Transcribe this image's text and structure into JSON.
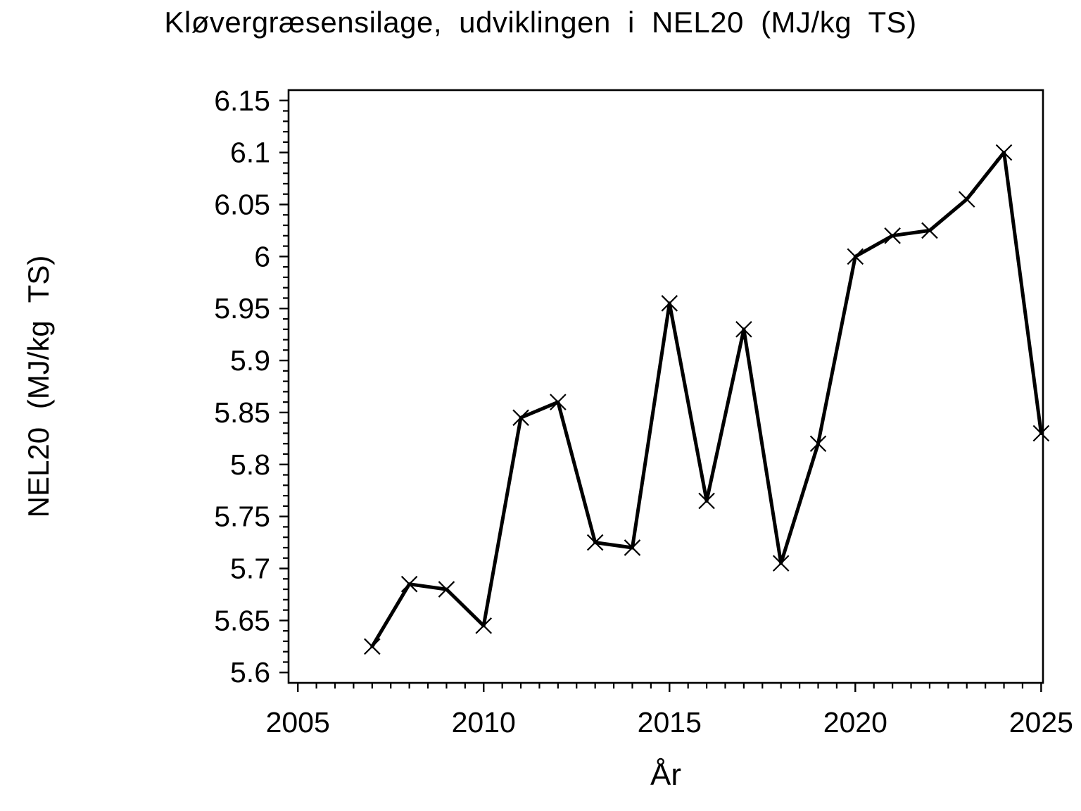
{
  "chart_data": {
    "type": "line",
    "title": "Kløvergræsensilage, udviklingen i NEL20 (MJ/kg TS)",
    "xlabel": "År",
    "ylabel": "NEL20 (MJ/kg TS)",
    "series": [
      {
        "name": "NEL20",
        "x": [
          2007,
          2008,
          2009,
          2010,
          2011,
          2012,
          2013,
          2014,
          2015,
          2016,
          2017,
          2018,
          2019,
          2020,
          2021,
          2022,
          2023,
          2024,
          2025
        ],
        "y": [
          5.625,
          5.685,
          5.68,
          5.645,
          5.845,
          5.86,
          5.725,
          5.72,
          5.955,
          5.765,
          5.93,
          5.705,
          5.82,
          6.0,
          6.02,
          6.025,
          6.055,
          6.1,
          5.83
        ]
      }
    ],
    "xlim": [
      2004.75,
      2025.05
    ],
    "ylim": [
      5.59,
      6.16
    ],
    "x_major_ticks": [
      {
        "value": 2005,
        "label": "2005"
      },
      {
        "value": 2010,
        "label": "2010"
      },
      {
        "value": 2015,
        "label": "2015"
      },
      {
        "value": 2020,
        "label": "2020"
      },
      {
        "value": 2025,
        "label": "2025"
      }
    ],
    "x_minor_step": 0.5,
    "y_major_ticks": [
      {
        "value": 5.6,
        "label": "5.6"
      },
      {
        "value": 5.65,
        "label": "5.65"
      },
      {
        "value": 5.7,
        "label": "5.7"
      },
      {
        "value": 5.75,
        "label": "5.75"
      },
      {
        "value": 5.8,
        "label": "5.8"
      },
      {
        "value": 5.85,
        "label": "5.85"
      },
      {
        "value": 5.9,
        "label": "5.9"
      },
      {
        "value": 5.95,
        "label": "5.95"
      },
      {
        "value": 6,
        "label": "6"
      },
      {
        "value": 6.05,
        "label": "6.05"
      },
      {
        "value": 6.1,
        "label": "6.1"
      },
      {
        "value": 6.15,
        "label": "6.15"
      }
    ],
    "y_minor_step": 0.01,
    "marker": "x",
    "line_color": "#000000",
    "background": "#ffffff",
    "grid": false,
    "legend": null
  }
}
